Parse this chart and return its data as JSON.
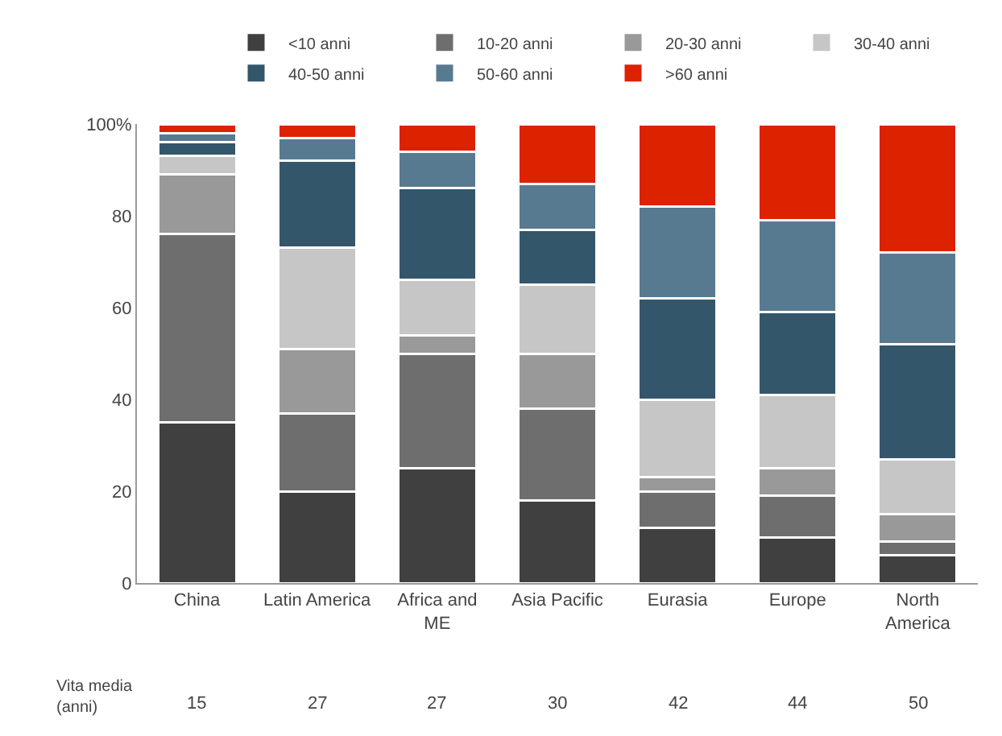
{
  "chart_data": {
    "type": "bar",
    "stacked": true,
    "legend": "top",
    "grid": false,
    "categories": [
      "China",
      "Latin America",
      "Africa and\nME",
      "Asia Pacific",
      "Eurasia",
      "Europe",
      "North\nAmerica"
    ],
    "ylim": [
      0,
      100
    ],
    "yticks": [
      0,
      20,
      40,
      60,
      80,
      {
        "value": 100,
        "label": "100%"
      }
    ],
    "series": [
      {
        "name": "<10 anni",
        "color": "#404040",
        "values": [
          35,
          20,
          25,
          18,
          12,
          10,
          6
        ]
      },
      {
        "name": "10-20 anni",
        "color": "#6e6e6e",
        "values": [
          41,
          17,
          25,
          20,
          8,
          9,
          3
        ]
      },
      {
        "name": "20-30 anni",
        "color": "#999999",
        "values": [
          13,
          14,
          4,
          12,
          3,
          6,
          6
        ]
      },
      {
        "name": "30-40 anni",
        "color": "#c6c6c6",
        "values": [
          4,
          22,
          12,
          15,
          17,
          16,
          12
        ]
      },
      {
        "name": "40-50 anni",
        "color": "#34566b",
        "values": [
          3,
          19,
          20,
          12,
          22,
          18,
          25
        ]
      },
      {
        "name": "50-60 anni",
        "color": "#587a91",
        "values": [
          2,
          5,
          8,
          10,
          20,
          20,
          20
        ]
      },
      {
        "name": ">60 anni",
        "color": "#dd2200",
        "values": [
          2,
          3,
          6,
          13,
          18,
          21,
          28
        ]
      }
    ],
    "annotations": [
      "Vita media\n(anni)",
      "15",
      "27",
      "27",
      "30",
      "42",
      "44",
      "50"
    ]
  }
}
